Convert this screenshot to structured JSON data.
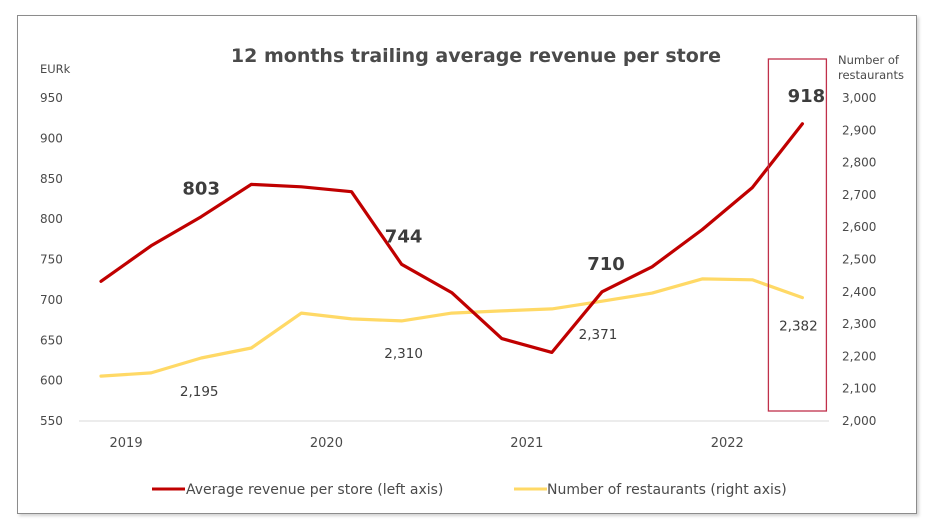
{
  "chart_data": {
    "type": "line",
    "title": "12 months trailing average revenue per store",
    "left_axis": {
      "unit_label": "EURk",
      "range": [
        550,
        950
      ],
      "ticks": [
        "950",
        "900",
        "850",
        "800",
        "750",
        "700",
        "650",
        "600",
        "550"
      ],
      "tick_values": [
        950,
        900,
        850,
        800,
        750,
        700,
        650,
        600,
        550
      ]
    },
    "right_axis": {
      "unit_label_line1": "Number of",
      "unit_label_line2": "restaurants",
      "range": [
        2000,
        3000
      ],
      "ticks": [
        "3,000",
        "2,900",
        "2,800",
        "2,700",
        "2,600",
        "2,500",
        "2,400",
        "2,300",
        "2,200",
        "2,100",
        "2,000"
      ],
      "tick_values": [
        3000,
        2900,
        2800,
        2700,
        2600,
        2500,
        2400,
        2300,
        2200,
        2100,
        2000
      ]
    },
    "x_axis": {
      "categories": [
        "2019",
        "2020",
        "2021",
        "2022"
      ],
      "category_point_index": [
        0.5,
        4.5,
        8.5,
        12.5
      ],
      "point_count": 15
    },
    "series": [
      {
        "name": "Average revenue per store (left axis)",
        "axis": "left",
        "color": "#c00000",
        "values": [
          723,
          767,
          803,
          843,
          840,
          834,
          744,
          709,
          652,
          635,
          710,
          741,
          787,
          839,
          918
        ],
        "labels": [
          {
            "index": 2,
            "text": "803"
          },
          {
            "index": 6,
            "text": "744"
          },
          {
            "index": 10,
            "text": "710"
          },
          {
            "index": 14,
            "text": "918"
          }
        ]
      },
      {
        "name": "Number of restaurants (right axis)",
        "axis": "right",
        "color": "#ffd966",
        "values": [
          2139,
          2149,
          2195,
          2226,
          2334,
          2316,
          2310,
          2334,
          2341,
          2347,
          2371,
          2396,
          2440,
          2437,
          2382
        ],
        "labels": [
          {
            "index": 2,
            "text": "2,195"
          },
          {
            "index": 6,
            "text": "2,310"
          },
          {
            "index": 10,
            "text": "2,371"
          },
          {
            "index": 14,
            "text": "2,382"
          }
        ]
      }
    ],
    "highlight": {
      "index": 14,
      "color": "#c0304a"
    },
    "legend": {
      "position": "bottom"
    },
    "grid": false
  }
}
